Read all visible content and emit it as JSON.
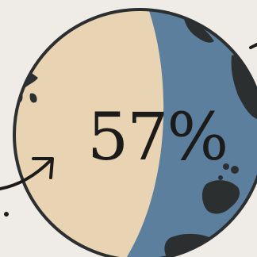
{
  "infographic": {
    "percentage_label": "57%",
    "percentage_value": 57,
    "colors": {
      "background": "#efebe6",
      "globe_land": "#e8d3b3",
      "globe_water": "#5b7f9c",
      "outline": "#2b2f30"
    },
    "icons": [
      "globe-icon",
      "curved-arrow-icon"
    ]
  }
}
